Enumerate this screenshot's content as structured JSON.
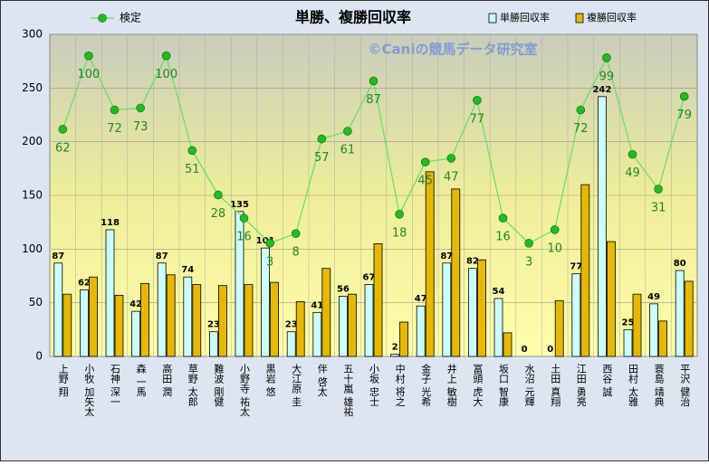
{
  "chart_data": {
    "type": "bar",
    "title": "単勝、複勝回収率",
    "annotation": "©Caniの競馬データ研究室",
    "categories": [
      "上野 翔",
      "小牧 加矢太",
      "石神 深一",
      "森 一馬",
      "高田 潤",
      "草野 太郎",
      "難波 剛健",
      "小野寺 祐太",
      "黒岩 悠",
      "大江原 圭",
      "伴 啓太",
      "五十嵐 雄祐",
      "小坂 忠士",
      "中村 将之",
      "金子 光希",
      "井上 敏樹",
      "冨頭 虎大",
      "坂口 智康",
      "水沼 元輝",
      "土田 真翔",
      "江田 勇亮",
      "西谷 誠",
      "田村 太雅",
      "蓑島 靖典",
      "平沢 健治"
    ],
    "series": [
      {
        "name": "単勝回収率",
        "color": "#ccffff",
        "values": [
          87,
          62,
          118,
          42,
          87,
          74,
          23,
          135,
          101,
          23,
          41,
          56,
          67,
          2,
          47,
          87,
          82,
          54,
          0,
          0,
          77,
          242,
          25,
          49,
          80
        ]
      },
      {
        "name": "複勝回収率",
        "color": "#e6b800",
        "values": [
          58,
          74,
          57,
          68,
          76,
          67,
          66,
          67,
          69,
          51,
          82,
          58,
          105,
          32,
          172,
          156,
          90,
          22,
          0,
          52,
          160,
          107,
          58,
          33,
          70
        ]
      },
      {
        "name": "検定",
        "color": "#66dd66",
        "type": "line",
        "axis": "y2",
        "values": [
          62,
          100,
          72,
          73,
          100,
          51,
          28,
          16,
          3,
          8,
          57,
          61,
          87,
          18,
          45,
          47,
          77,
          16,
          3,
          10,
          72,
          99,
          49,
          31,
          79
        ]
      }
    ],
    "ylim": [
      0,
      300
    ],
    "yticks": [
      0,
      50,
      100,
      150,
      200,
      250,
      300
    ],
    "y2lim": [
      -55.6,
      111.1
    ],
    "grid": true
  }
}
